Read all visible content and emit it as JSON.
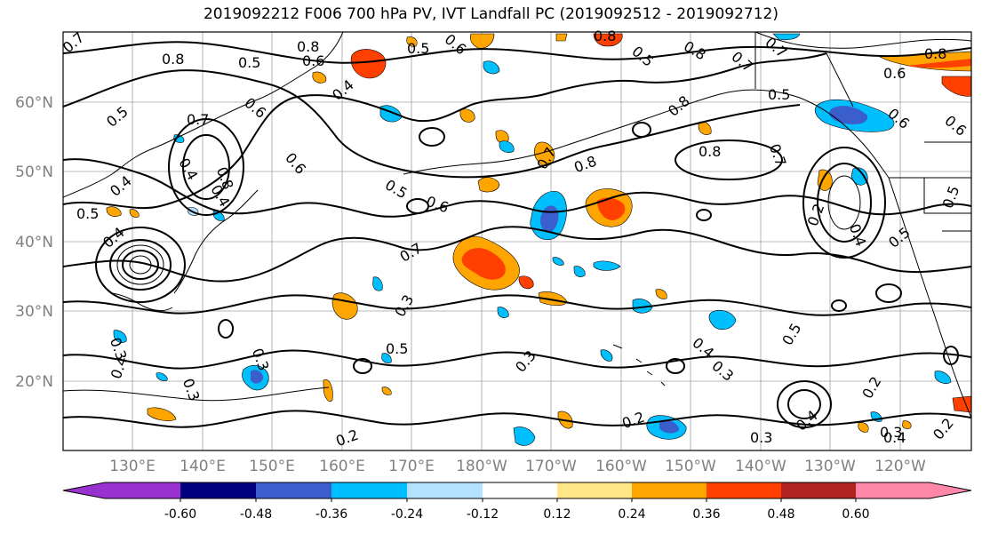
{
  "title": "2019092212 F006 700 hPa PV, IVT Landfall PC (2019092512 - 2019092712)",
  "lat_labels": [
    "60°N",
    "50°N",
    "40°N",
    "30°N",
    "20°N"
  ],
  "lon_labels": [
    "130°E",
    "140°E",
    "150°E",
    "160°E",
    "170°E",
    "180°W",
    "170°W",
    "160°W",
    "150°W",
    "140°W",
    "130°W",
    "120°W"
  ],
  "colorbar": {
    "colors": [
      "#9b30d0",
      "#000080",
      "#3a5fcd",
      "#00bfff",
      "#b2e2ff",
      "#ffffff",
      "#ffe787",
      "#ffa500",
      "#ff4000",
      "#b22222",
      "#ff88aa"
    ],
    "tick_labels": [
      "-0.60",
      "-0.48",
      "-0.36",
      "-0.24",
      "-0.12",
      "0.12",
      "0.24",
      "0.36",
      "0.48",
      "0.60"
    ]
  },
  "contour_labels": [
    "0.7",
    "0.8",
    "0.5",
    "0.6",
    "0.8",
    "0.5",
    "0.6",
    "0.4",
    "0.5",
    "0.6",
    "0.5",
    "0.7",
    "0.5",
    "0.6",
    "0.4",
    "0.5",
    "0.6",
    "0.8",
    "0.7",
    "0.4",
    "0.5",
    "0.7",
    "0.8",
    "0.7",
    "0.4",
    "0.5",
    "0.6",
    "0.7",
    "0.3",
    "0.5",
    "0.3",
    "0.4",
    "0.3",
    "0.2",
    "0.3",
    "0.2",
    "0.4",
    "0.3",
    "0.5",
    "0.4",
    "0.3",
    "0.2",
    "0.3",
    "0.4",
    "0.2",
    "0.3",
    "0.4",
    "0.2",
    "0.6",
    "0.8",
    "0.5",
    "0.4",
    "0.8",
    "0.8",
    "0.8",
    "0.8",
    "0.7",
    "0.6"
  ]
}
